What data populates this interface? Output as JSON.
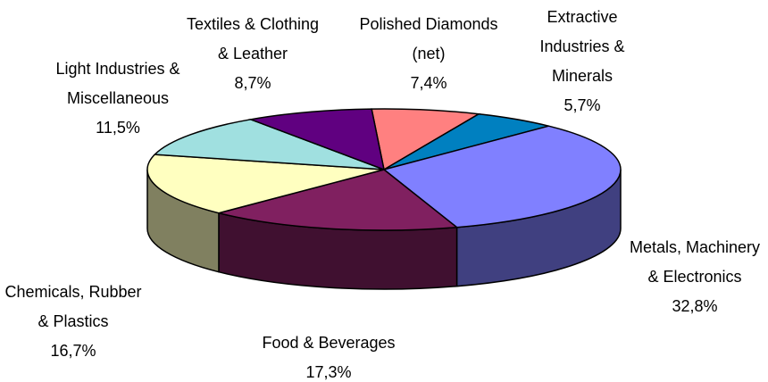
{
  "chart_data": {
    "type": "pie3d",
    "categories": [
      [
        "Polished Diamonds",
        "(net)"
      ],
      [
        "Extractive",
        "Industries &",
        "Minerals"
      ],
      [
        "Metals, Machinery",
        "& Electronics"
      ],
      [
        "Food & Beverages"
      ],
      [
        "Chemicals, Rubber",
        "& Plastics"
      ],
      [
        "Light Industries &",
        "Miscellaneous"
      ],
      [
        "Textiles & Clothing",
        "& Leather"
      ]
    ],
    "values": [
      7.4,
      5.7,
      32.8,
      17.3,
      16.7,
      11.5,
      8.7
    ],
    "value_labels": [
      "7,4%",
      "5,7%",
      "32,8%",
      "17,3%",
      "16,7%",
      "11,5%",
      "8,7%"
    ],
    "colors": [
      "#ff8080",
      "#0080c0",
      "#8080ff",
      "#802060",
      "#ffffc0",
      "#a0e0e0",
      "#600080"
    ]
  }
}
